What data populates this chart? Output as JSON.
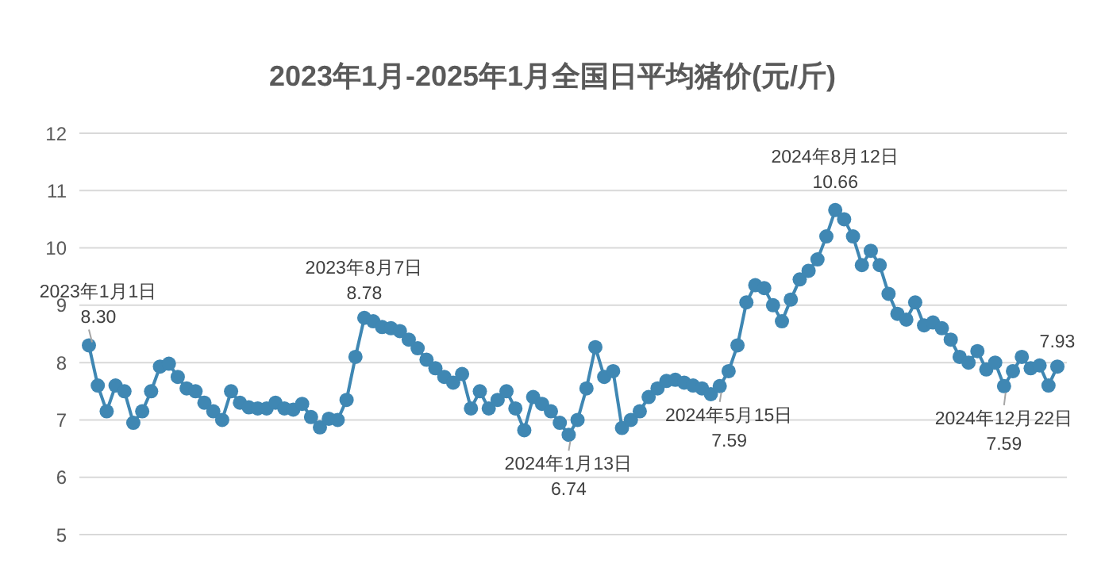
{
  "chart_data": {
    "type": "line",
    "title": "2023年1月-2025年1月全国日平均猪价(元/斤)",
    "categories": [
      null,
      null,
      null,
      null,
      null,
      null,
      null,
      null,
      null,
      null,
      null,
      null,
      null,
      null,
      null,
      null,
      null,
      null,
      null,
      null,
      null,
      null,
      null,
      null,
      null,
      null,
      null,
      null,
      null,
      null,
      null,
      null,
      null,
      null,
      null,
      null,
      null,
      null,
      null,
      null,
      null,
      null,
      null,
      null,
      null,
      null,
      null,
      null,
      null,
      null,
      null,
      null,
      null,
      null,
      null,
      null,
      null,
      null,
      null,
      null,
      null,
      null,
      null,
      null,
      null,
      null,
      null,
      null,
      null,
      null,
      null,
      null,
      null,
      null,
      null,
      null,
      null,
      null,
      null,
      null,
      null,
      null,
      null,
      null,
      null,
      null,
      null,
      null,
      null,
      null,
      null,
      null,
      null,
      null,
      null,
      null,
      null,
      null,
      null,
      null,
      null,
      null,
      null,
      null,
      null,
      null,
      null,
      null,
      null,
      null
    ],
    "series": [
      {
        "color": "#3f87b3",
        "values": [
          8.3,
          7.6,
          7.15,
          7.6,
          7.5,
          6.95,
          7.15,
          7.5,
          7.93,
          7.98,
          7.75,
          7.55,
          7.5,
          7.3,
          7.15,
          7.0,
          7.5,
          7.3,
          7.22,
          7.2,
          7.2,
          7.3,
          7.2,
          7.18,
          7.28,
          7.05,
          6.87,
          7.02,
          7.0,
          7.35,
          8.1,
          8.78,
          8.72,
          8.62,
          8.6,
          8.55,
          8.4,
          8.25,
          8.05,
          7.9,
          7.75,
          7.65,
          7.8,
          7.2,
          7.5,
          7.2,
          7.35,
          7.5,
          7.2,
          6.82,
          7.4,
          7.28,
          7.15,
          6.95,
          6.74,
          7.0,
          7.55,
          8.27,
          7.75,
          7.85,
          6.86,
          7.0,
          7.15,
          7.4,
          7.55,
          7.68,
          7.7,
          7.65,
          7.6,
          7.55,
          7.45,
          7.59,
          7.85,
          8.3,
          9.05,
          9.35,
          9.3,
          9.0,
          8.72,
          9.1,
          9.45,
          9.6,
          9.8,
          10.2,
          10.66,
          10.5,
          10.2,
          9.7,
          9.95,
          9.7,
          9.2,
          8.85,
          8.75,
          9.05,
          8.65,
          8.7,
          8.6,
          8.4,
          8.1,
          8.0,
          8.2,
          7.88,
          8.0,
          7.59,
          7.85,
          8.1,
          7.9,
          7.95,
          7.6,
          7.93
        ]
      }
    ],
    "ylim": [
      5,
      12
    ],
    "yticks": [
      5,
      6,
      7,
      8,
      9,
      10,
      11,
      12
    ],
    "grid": "y",
    "marker": "circle",
    "tick_labels": "y",
    "annotations": [
      {
        "text": "2023年1月1日\n8.30",
        "y": 8.3
      },
      {
        "text": "2023年8月7日\n8.78",
        "y": 8.78
      },
      {
        "text": "2024年1月13日\n6.74",
        "y": 6.74
      },
      {
        "text": "2024年5月15日\n7.59",
        "y": 7.59
      },
      {
        "text": "2024年8月12日\n10.66",
        "y": 10.66
      },
      {
        "text": "2024年12月22日\n7.59",
        "y": 7.59
      },
      {
        "text": "7.93",
        "y": 7.93
      }
    ]
  }
}
